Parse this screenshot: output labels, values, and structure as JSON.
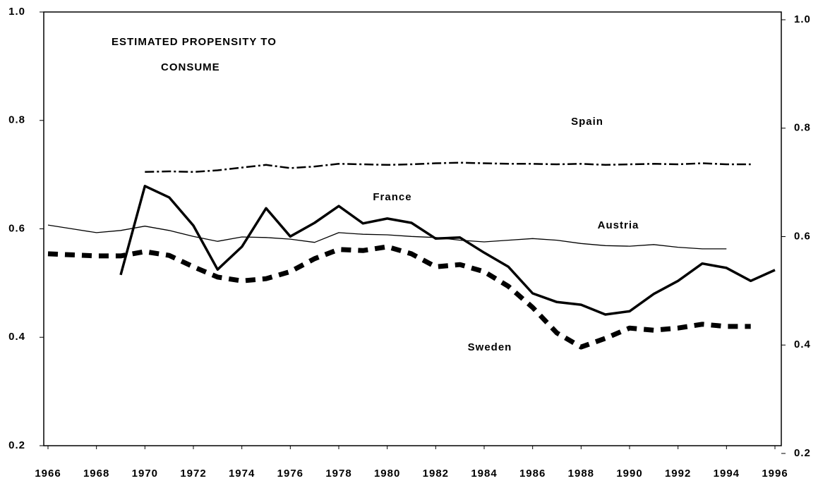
{
  "chart_data": {
    "type": "line",
    "title": [
      "ESTIMATED PROPENSITY TO",
      "CONSUME"
    ],
    "x": [
      1966,
      1967,
      1968,
      1969,
      1970,
      1971,
      1972,
      1973,
      1974,
      1975,
      1976,
      1977,
      1978,
      1979,
      1980,
      1981,
      1982,
      1983,
      1984,
      1985,
      1986,
      1987,
      1988,
      1989,
      1990,
      1991,
      1992,
      1993,
      1994,
      1995,
      1996
    ],
    "series": [
      {
        "name": "Spain",
        "color": "#000000",
        "linestyle": "dashdot",
        "values": [
          null,
          null,
          null,
          null,
          0.705,
          0.706,
          0.705,
          0.708,
          0.713,
          0.718,
          0.712,
          0.715,
          0.72,
          0.719,
          0.718,
          0.719,
          0.721,
          0.722,
          0.721,
          0.72,
          0.72,
          0.719,
          0.72,
          0.718,
          0.719,
          0.72,
          0.719,
          0.721,
          0.719,
          0.719,
          null
        ]
      },
      {
        "name": "France",
        "color": "#000000",
        "linestyle": "solid",
        "values": [
          null,
          null,
          null,
          0.515,
          0.679,
          0.658,
          0.606,
          0.525,
          0.567,
          0.638,
          0.586,
          0.611,
          0.642,
          0.61,
          0.619,
          0.611,
          0.582,
          0.584,
          0.556,
          0.53,
          0.481,
          0.465,
          0.46,
          0.442,
          0.448,
          0.48,
          0.504,
          0.536,
          0.528,
          0.504,
          0.524
        ]
      },
      {
        "name": "Austria",
        "color": "#000000",
        "linestyle": "solid",
        "values": [
          0.607,
          0.6,
          0.593,
          0.597,
          0.605,
          0.597,
          0.586,
          0.577,
          0.585,
          0.584,
          0.581,
          0.575,
          0.593,
          0.59,
          0.589,
          0.586,
          0.584,
          0.579,
          0.576,
          0.579,
          0.582,
          0.579,
          0.573,
          0.569,
          0.568,
          0.571,
          0.566,
          0.563,
          0.563,
          null,
          null
        ]
      },
      {
        "name": "Sweden",
        "color": "#000000",
        "linestyle": "dashed",
        "values": [
          0.554,
          0.552,
          0.55,
          0.55,
          0.558,
          0.551,
          0.53,
          0.511,
          0.504,
          0.508,
          0.521,
          0.545,
          0.562,
          0.56,
          0.567,
          0.554,
          0.53,
          0.534,
          0.521,
          0.494,
          0.455,
          0.408,
          0.382,
          0.398,
          0.417,
          0.413,
          0.417,
          0.424,
          0.42,
          0.42,
          null
        ]
      }
    ],
    "xlim": [
      1966,
      1996
    ],
    "xticks": [
      1966,
      1968,
      1970,
      1972,
      1974,
      1976,
      1978,
      1980,
      1982,
      1984,
      1986,
      1988,
      1990,
      1992,
      1994,
      1996
    ],
    "ylim": [
      0.2,
      1.0
    ],
    "yticks": [
      0.2,
      0.4,
      0.6,
      0.8,
      {
        "value": 1,
        "label": "1.0"
      }
    ],
    "y2lim": [
      0.2,
      1.0
    ],
    "y2ticks": [
      0.2,
      0.4,
      0.6,
      0.8,
      {
        "value": 1,
        "label": "1.0"
      }
    ],
    "grid": false
  }
}
